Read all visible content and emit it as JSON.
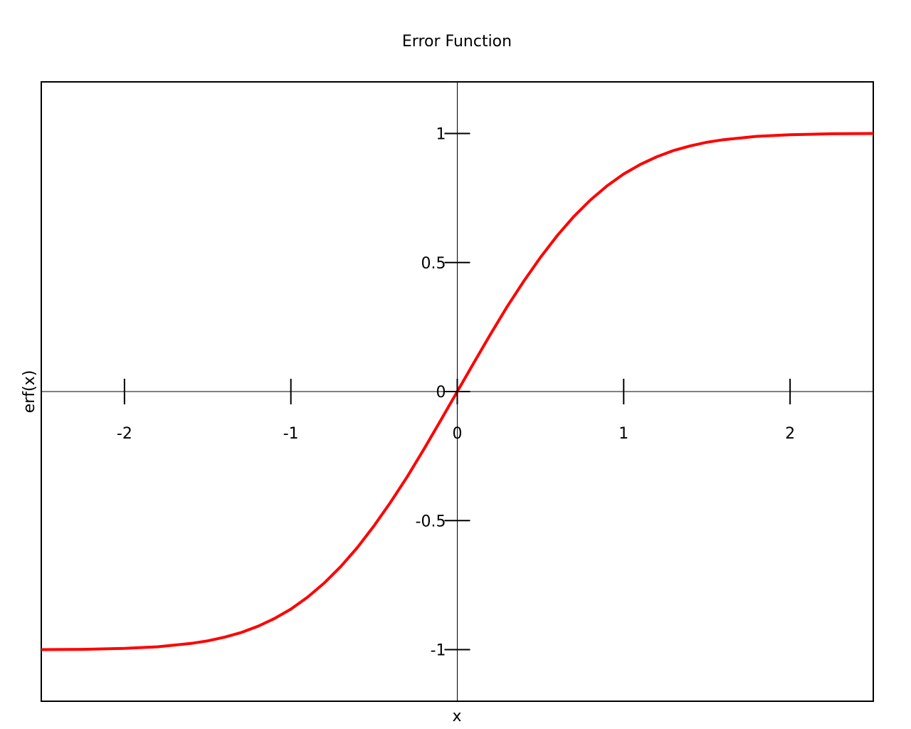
{
  "chart_data": {
    "type": "line",
    "title": "Error Function",
    "xlabel": "x",
    "ylabel": "erf(x)",
    "xlim": [
      -2.5,
      2.5
    ],
    "ylim": [
      -1.2,
      1.2
    ],
    "grid": false,
    "legend": "none",
    "x_ticks": [
      -2,
      -1,
      0,
      1,
      2
    ],
    "x_tick_labels": [
      "-2",
      "-1",
      "0",
      "1",
      "2"
    ],
    "y_ticks": [
      -1,
      -0.5,
      0,
      0.5,
      1
    ],
    "y_tick_labels": [
      "-1",
      "-0.5",
      "0",
      "0.5",
      "1"
    ],
    "series": [
      {
        "color": "#ff0000",
        "x": [
          -2.5,
          -2.25,
          -2.0,
          -1.8,
          -1.6,
          -1.5,
          -1.4,
          -1.3,
          -1.2,
          -1.1,
          -1.0,
          -0.9,
          -0.8,
          -0.7,
          -0.6,
          -0.5,
          -0.4,
          -0.3,
          -0.2,
          -0.1,
          0.0,
          0.1,
          0.2,
          0.3,
          0.4,
          0.5,
          0.6,
          0.7,
          0.8,
          0.9,
          1.0,
          1.1,
          1.2,
          1.3,
          1.4,
          1.5,
          1.6,
          1.8,
          2.0,
          2.25,
          2.5
        ],
        "y": [
          -1.0,
          -0.999,
          -0.995,
          -0.989,
          -0.976,
          -0.966,
          -0.952,
          -0.934,
          -0.91,
          -0.88,
          -0.843,
          -0.797,
          -0.742,
          -0.678,
          -0.604,
          -0.52,
          -0.428,
          -0.329,
          -0.223,
          -0.112,
          0.0,
          0.112,
          0.223,
          0.329,
          0.428,
          0.52,
          0.604,
          0.678,
          0.742,
          0.797,
          0.843,
          0.88,
          0.91,
          0.934,
          0.952,
          0.966,
          0.976,
          0.989,
          0.995,
          0.999,
          1.0
        ]
      }
    ]
  }
}
